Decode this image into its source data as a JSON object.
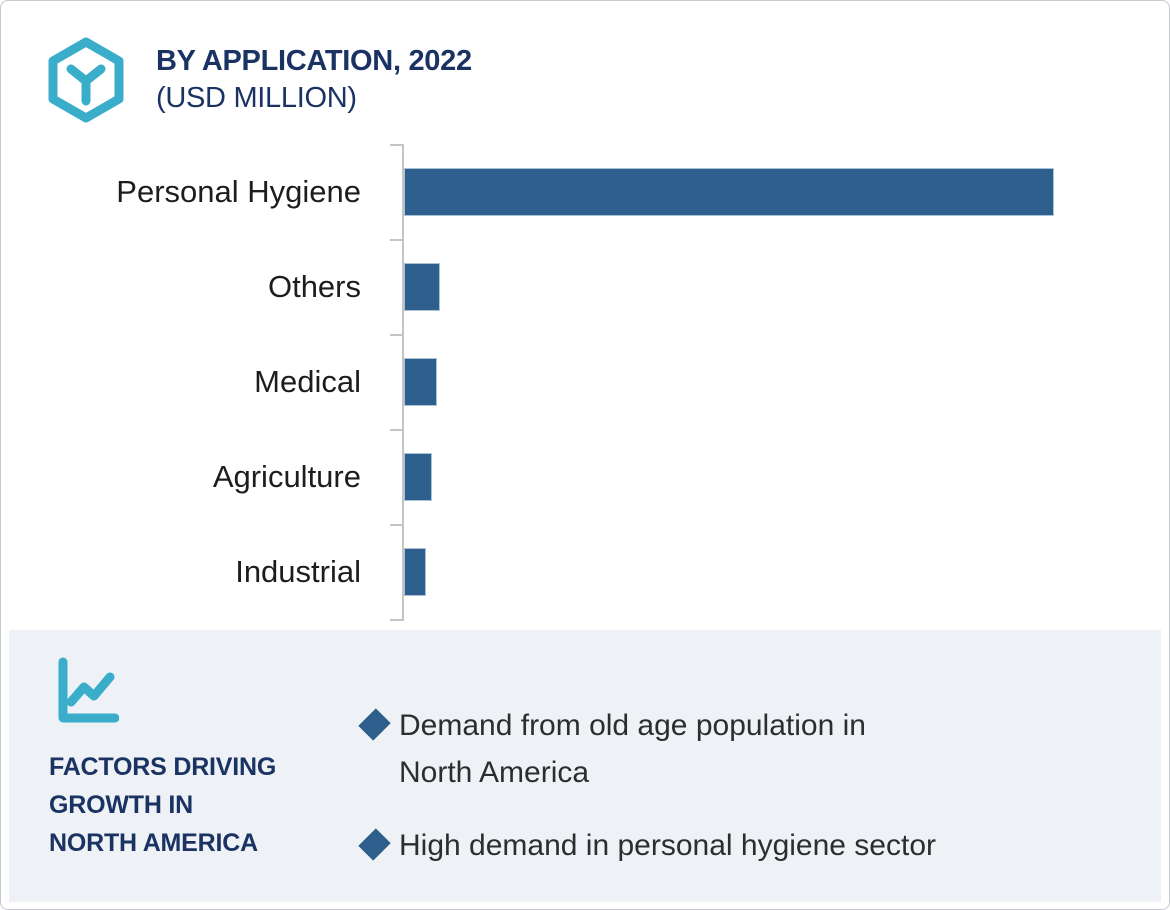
{
  "header": {
    "title_line1": "BY APPLICATION, 2022",
    "title_line2": "(USD MILLION)",
    "icon": "hexagon-cube-icon"
  },
  "chart_data": {
    "type": "bar",
    "orientation": "horizontal",
    "title": "BY APPLICATION, 2022 (USD MILLION)",
    "categories": [
      "Personal Hygiene",
      "Others",
      "Medical",
      "Agriculture",
      "Industrial"
    ],
    "values_relative_pct_of_max": [
      100,
      5.5,
      5.1,
      4.3,
      3.4
    ],
    "value_labels_shown": false,
    "axis_tick_labels_shown": false,
    "bar_color": "#2d5e8c",
    "axis_color": "#c4c4c4",
    "xlabel": "",
    "ylabel": "",
    "legend": "none",
    "grid": "off",
    "note": "No numeric axis or data labels are visible in the image; values are relative bar lengths estimated from pixels with the longest bar (Personal Hygiene) set to 100."
  },
  "factors_panel": {
    "icon": "line-chart-icon",
    "title": "FACTORS DRIVING\nGROWTH IN\nNORTH AMERICA",
    "bullet_marker": "diamond",
    "bullets": [
      "Demand from old age population in\nNorth America",
      "High demand in personal hygiene sector"
    ]
  },
  "colors": {
    "navy_text": "#1a3363",
    "teal_icon": "#3aadcb",
    "bar_blue": "#2d5e8c",
    "panel_background": "#eef1f6",
    "axis_gray": "#c4c4c4",
    "bullet_text": "#2d2d2d",
    "page_border": "#c6cad0"
  }
}
